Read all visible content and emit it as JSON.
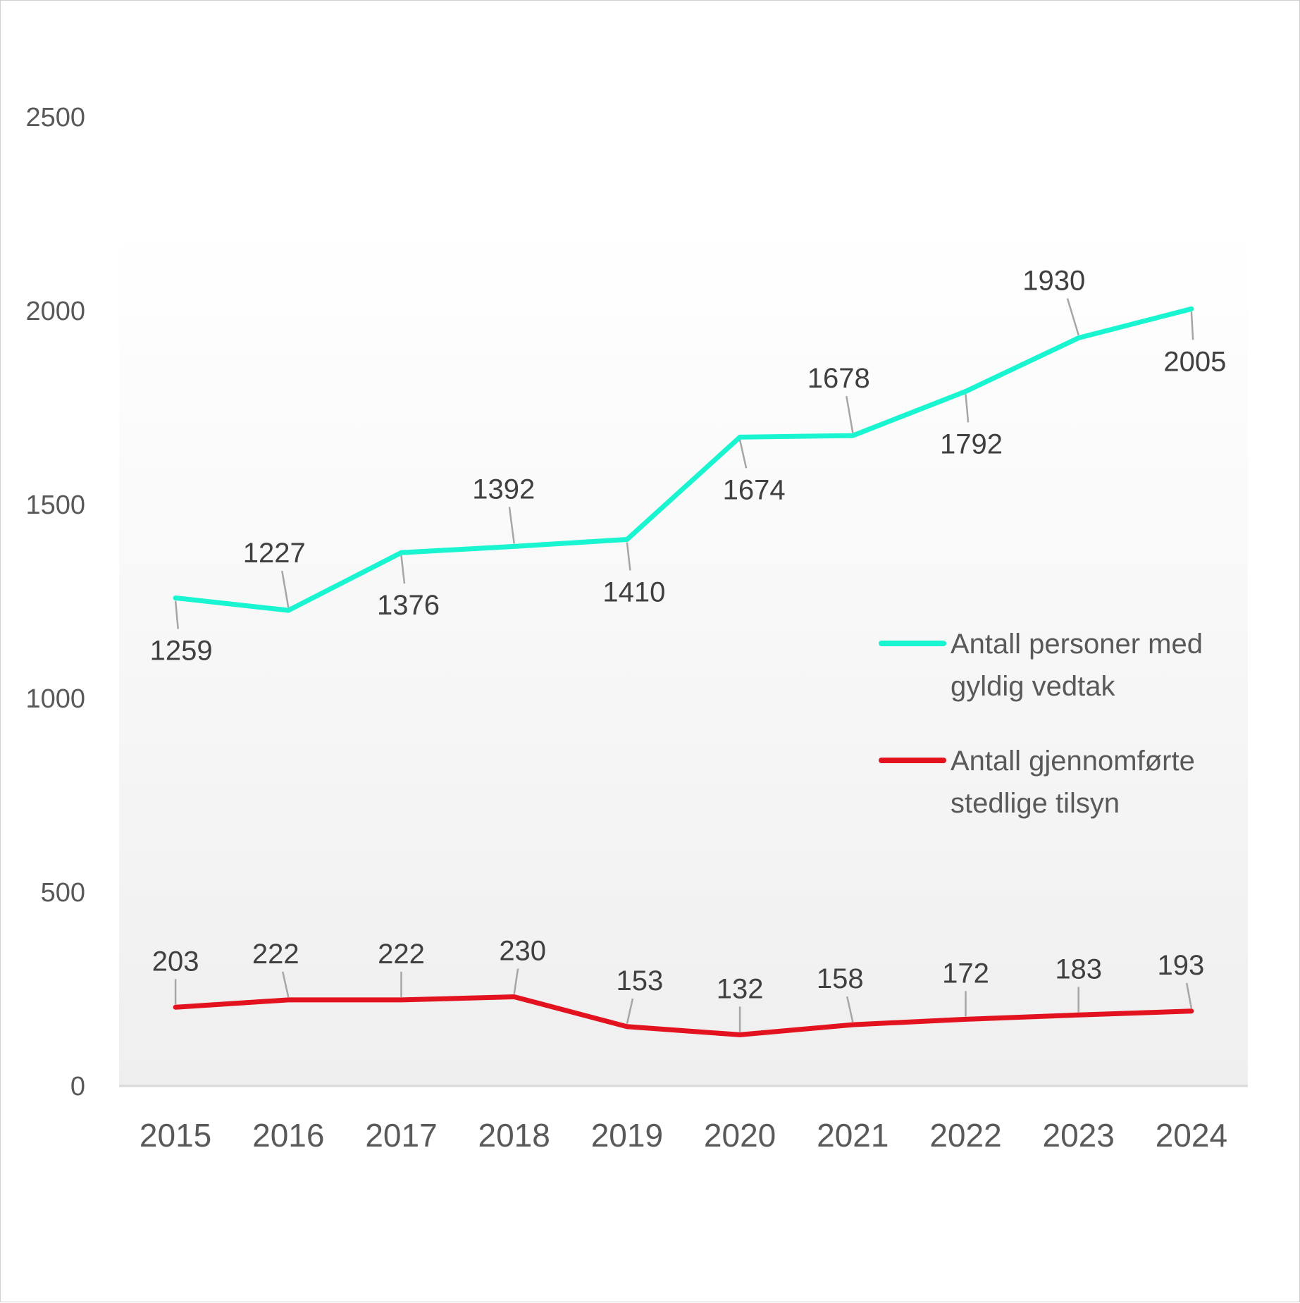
{
  "chart_data": {
    "type": "line",
    "categories": [
      "2015",
      "2016",
      "2017",
      "2018",
      "2019",
      "2020",
      "2021",
      "2022",
      "2023",
      "2024"
    ],
    "ylim": [
      0,
      2500
    ],
    "yticks": [
      "0",
      "500",
      "1000",
      "1500",
      "2000",
      "2500"
    ],
    "grid": false,
    "legend_position": "right",
    "series": [
      {
        "name_lines": [
          "Antall personer med",
          "gyldig vedtak"
        ],
        "color": "#19f5d0",
        "values": [
          1259,
          1227,
          1376,
          1392,
          1410,
          1674,
          1678,
          1792,
          1930,
          2005
        ],
        "labels": [
          "1259",
          "1227",
          "1376",
          "1392",
          "1410",
          "1674",
          "1678",
          "1792",
          "1930",
          "2005"
        ]
      },
      {
        "name_lines": [
          "Antall gjennomførte",
          "stedlige tilsyn"
        ],
        "color": "#e2121f",
        "values": [
          203,
          222,
          222,
          230,
          153,
          132,
          158,
          172,
          183,
          193
        ],
        "labels": [
          "203",
          "222",
          "222",
          "230",
          "153",
          "132",
          "158",
          "172",
          "183",
          "193"
        ]
      }
    ]
  }
}
